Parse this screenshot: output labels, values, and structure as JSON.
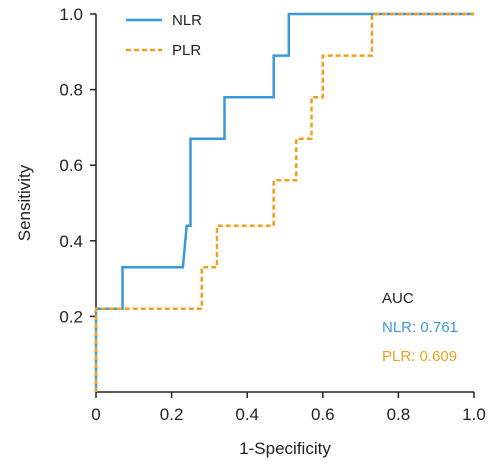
{
  "chart_data": {
    "type": "line",
    "xlabel": "1-Specificity",
    "ylabel": "Sensitivity",
    "xlim": [
      0,
      1
    ],
    "ylim": [
      0,
      1
    ],
    "x_ticks": [
      {
        "value": 0,
        "label": "0"
      },
      {
        "value": 0.2,
        "label": "0.2"
      },
      {
        "value": 0.4,
        "label": "0.4"
      },
      {
        "value": 0.6,
        "label": "0.6"
      },
      {
        "value": 0.8,
        "label": "0.8"
      },
      {
        "value": 1.0,
        "label": "1.0"
      }
    ],
    "y_ticks": [
      {
        "value": 0.2,
        "label": "0.2"
      },
      {
        "value": 0.4,
        "label": "0.4"
      },
      {
        "value": 0.6,
        "label": "0.6"
      },
      {
        "value": 0.8,
        "label": "0.8"
      },
      {
        "value": 1.0,
        "label": "1.0"
      }
    ],
    "grid": false,
    "legend_position": "top-left",
    "series": [
      {
        "name": "NLR",
        "color": "#3a9ad9",
        "dash": "solid",
        "x": [
          0,
          0,
          0.07,
          0.07,
          0.23,
          0.24,
          0.25,
          0.25,
          0.34,
          0.34,
          0.47,
          0.47,
          0.51,
          0.51,
          1.0
        ],
        "y": [
          0,
          0.22,
          0.22,
          0.33,
          0.33,
          0.44,
          0.44,
          0.67,
          0.67,
          0.78,
          0.78,
          0.89,
          0.89,
          1.0,
          1.0
        ]
      },
      {
        "name": "PLR",
        "color": "#f0a020",
        "dash": "dashed",
        "x": [
          0,
          0,
          0.28,
          0.28,
          0.32,
          0.32,
          0.47,
          0.47,
          0.53,
          0.53,
          0.57,
          0.57,
          0.6,
          0.6,
          0.73,
          0.73,
          1.0
        ],
        "y": [
          0,
          0.22,
          0.22,
          0.33,
          0.33,
          0.44,
          0.44,
          0.56,
          0.56,
          0.67,
          0.67,
          0.78,
          0.78,
          0.89,
          0.89,
          1.0,
          1.0
        ]
      }
    ],
    "annotations": {
      "auc_title": "AUC",
      "auc_lines": [
        {
          "text": "NLR: 0.761",
          "color": "#3a9ad9"
        },
        {
          "text": "PLR: 0.609",
          "color": "#f0a020"
        }
      ]
    }
  }
}
